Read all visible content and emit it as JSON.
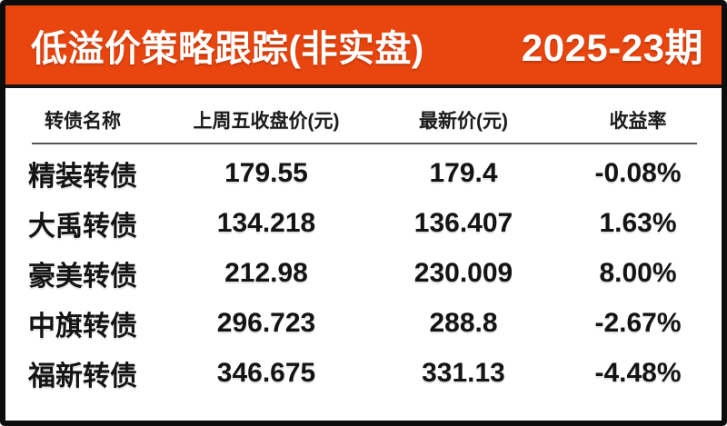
{
  "colors": {
    "accent_orange": "#e9450e",
    "frame_black": "#0d0d0d",
    "text_black": "#141414",
    "divider_gray": "#545454",
    "background_white": "#ffffff"
  },
  "header": {
    "title": "低溢价策略跟踪(非实盘)",
    "period": "2025-23期"
  },
  "table": {
    "columns": [
      "转债名称",
      "上周五收盘价(元)",
      "最新价(元)",
      "收益率"
    ],
    "rows": [
      {
        "name": "精装转债",
        "last_close": "179.55",
        "latest": "179.4",
        "return": "-0.08%"
      },
      {
        "name": "大禹转债",
        "last_close": "134.218",
        "latest": "136.407",
        "return": "1.63%"
      },
      {
        "name": "豪美转债",
        "last_close": "212.98",
        "latest": "230.009",
        "return": "8.00%"
      },
      {
        "name": "中旗转债",
        "last_close": "296.723",
        "latest": "288.8",
        "return": "-2.67%"
      },
      {
        "name": "福新转债",
        "last_close": "346.675",
        "latest": "331.13",
        "return": "-4.48%"
      }
    ]
  },
  "chart_data": {
    "type": "table",
    "title": "低溢价策略跟踪(非实盘)",
    "subtitle": "2025-23期",
    "columns": [
      "转债名称",
      "上周五收盘价(元)",
      "最新价(元)",
      "收益率"
    ],
    "rows": [
      [
        "精装转债",
        179.55,
        179.4,
        "-0.08%"
      ],
      [
        "大禹转债",
        134.218,
        136.407,
        "1.63%"
      ],
      [
        "豪美转债",
        212.98,
        230.009,
        "8.00%"
      ],
      [
        "中旗转债",
        296.723,
        288.8,
        "-2.67%"
      ],
      [
        "福新转债",
        346.675,
        331.13,
        "-4.48%"
      ]
    ]
  }
}
